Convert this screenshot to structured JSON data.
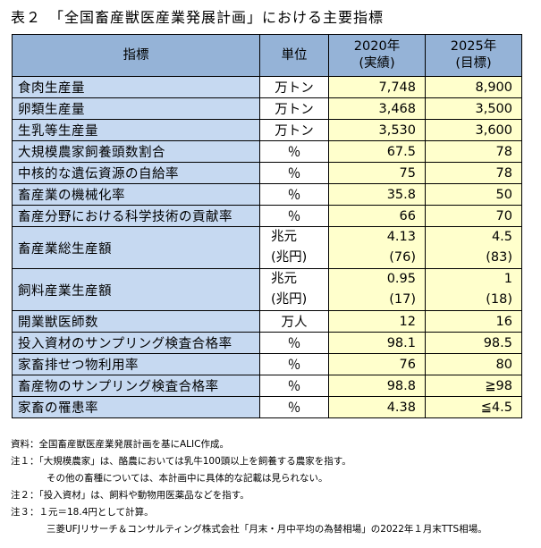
{
  "title": "表２　「全国畜産獣医産業発展計画」における主要指標",
  "headers": {
    "indicator": "指標",
    "unit": "単位",
    "y2020_l1": "2020年",
    "y2020_l2": "(実績)",
    "y2025_l1": "2025年",
    "y2025_l2": "(目標)"
  },
  "rows": [
    {
      "label": "食肉生産量",
      "unit": "万トン",
      "v2020": "7,748",
      "v2025": "8,900"
    },
    {
      "label": "卵類生産量",
      "unit": "万トン",
      "v2020": "3,468",
      "v2025": "3,500"
    },
    {
      "label": "生乳等生産量",
      "unit": "万トン",
      "v2020": "3,530",
      "v2025": "3,600"
    },
    {
      "label": "大規模農家飼養頭数割合",
      "unit": "％",
      "v2020": "67.5",
      "v2025": "78"
    },
    {
      "label": "中核的な遺伝資源の自給率",
      "unit": "％",
      "v2020": "75",
      "v2025": "78"
    },
    {
      "label": "畜産業の機械化率",
      "unit": "％",
      "v2020": "35.8",
      "v2025": "50"
    },
    {
      "label": "畜産分野における科学技術の貢献率",
      "unit": "％",
      "v2020": "66",
      "v2025": "70"
    },
    {
      "label": "畜産業総生産額",
      "unit": "兆元",
      "unit2": "(兆円)",
      "v2020": "4.13",
      "v2020b": "(76)",
      "v2025": "4.5",
      "v2025b": "(83)"
    },
    {
      "label": "飼料産業生産額",
      "unit": "兆元",
      "unit2": "(兆円)",
      "v2020": "0.95",
      "v2020b": "(17)",
      "v2025": "1",
      "v2025b": "(18)"
    },
    {
      "label": "開業獣医師数",
      "unit": "万人",
      "v2020": "12",
      "v2025": "16"
    },
    {
      "label": "投入資材のサンプリング検査合格率",
      "unit": "％",
      "v2020": "98.1",
      "v2025": "98.5"
    },
    {
      "label": "家畜排せつ物利用率",
      "unit": "％",
      "v2020": "76",
      "v2025": "80"
    },
    {
      "label": "畜産物のサンプリング検査合格率",
      "unit": "％",
      "v2020": "98.8",
      "v2025": "≧98"
    },
    {
      "label": "家畜の罹患率",
      "unit": "％",
      "v2020": "4.38",
      "v2025": "≦4.5"
    }
  ],
  "notes": {
    "source": "資料：全国畜産獣医産業発展計画を基にALIC作成。",
    "n1a": "注１：「大規模農家」は、酪農においては乳牛100頭以上を飼養する農家を指す。",
    "n1b": "その他の畜種については、本計画中に具体的な記載は見られない。",
    "n2": "注２：「投入資材」は、飼料や動物用医薬品などを指す。",
    "n3a": "注３：１元＝18.4円として計算。",
    "n3b": "三菱UFJリサーチ＆コンサルティング株式会社「月末・月中平均の為替相場」の2022年１月末TTS相場。"
  }
}
